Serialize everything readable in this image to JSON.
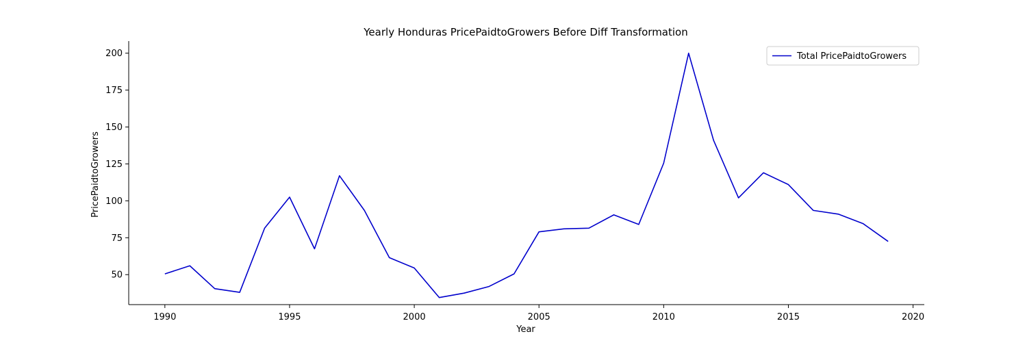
{
  "chart_data": {
    "type": "line",
    "title": "Yearly Honduras PricePaidtoGrowers Before Diff Transformation",
    "xlabel": "Year",
    "ylabel": "PricePaidtoGrowers",
    "xlim": [
      1988.55,
      2020.45
    ],
    "ylim": [
      29.7,
      208.2
    ],
    "x_ticks": [
      1990,
      1995,
      2000,
      2005,
      2010,
      2015,
      2020
    ],
    "y_ticks": [
      50,
      75,
      100,
      125,
      150,
      175,
      200
    ],
    "grid": false,
    "legend_position": "top-right",
    "series": [
      {
        "name": "Total PricePaidtoGrowers",
        "color": "#0000cc",
        "x": [
          1990,
          1991,
          1992,
          1993,
          1994,
          1995,
          1996,
          1997,
          1998,
          1999,
          2000,
          2001,
          2002,
          2003,
          2004,
          2005,
          2006,
          2007,
          2008,
          2009,
          2010,
          2011,
          2012,
          2013,
          2014,
          2015,
          2016,
          2017,
          2018,
          2019
        ],
        "values": [
          50.5,
          56.0,
          40.5,
          38.0,
          81.5,
          102.5,
          67.5,
          117.0,
          93.5,
          61.5,
          54.5,
          34.5,
          37.5,
          42.0,
          50.5,
          79.0,
          81.0,
          81.5,
          90.5,
          84.0,
          125.5,
          200.0,
          141.0,
          102.0,
          119.0,
          111.0,
          93.5,
          91.0,
          84.5,
          72.5
        ]
      }
    ]
  }
}
